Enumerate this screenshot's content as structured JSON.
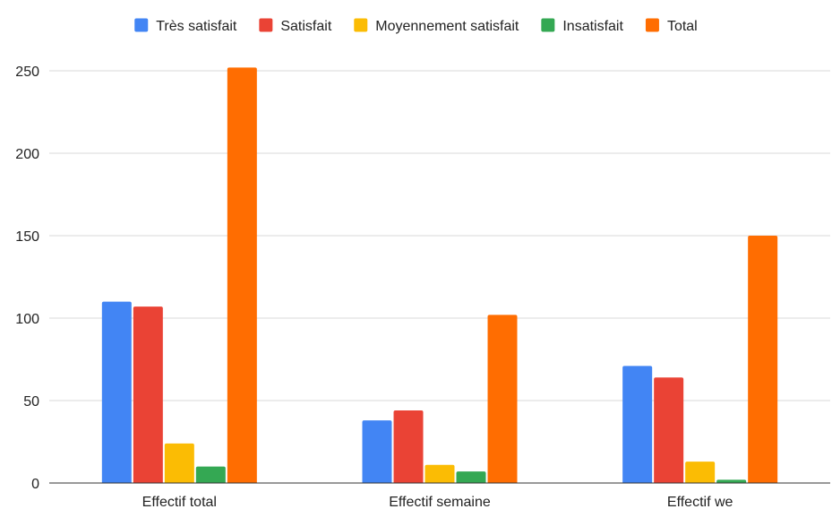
{
  "chart_data": {
    "type": "bar",
    "categories": [
      "Effectif total",
      "Effectif semaine",
      "Effectif we"
    ],
    "series": [
      {
        "name": "Très satisfait",
        "color": "#4285f4",
        "values": [
          110,
          38,
          71
        ]
      },
      {
        "name": "Satisfait",
        "color": "#ea4335",
        "values": [
          107,
          44,
          64
        ]
      },
      {
        "name": "Moyennement satisfait",
        "color": "#fbbc04",
        "values": [
          24,
          11,
          13
        ]
      },
      {
        "name": "Insatisfait",
        "color": "#34a853",
        "values": [
          10,
          7,
          2
        ]
      },
      {
        "name": "Total",
        "color": "#ff6d01",
        "values": [
          252,
          102,
          150
        ]
      }
    ],
    "yticks": [
      0,
      50,
      100,
      150,
      200,
      250
    ],
    "ylim": [
      0,
      260
    ],
    "title": "",
    "xlabel": "",
    "ylabel": "",
    "legend_position": "top",
    "grid": true
  }
}
